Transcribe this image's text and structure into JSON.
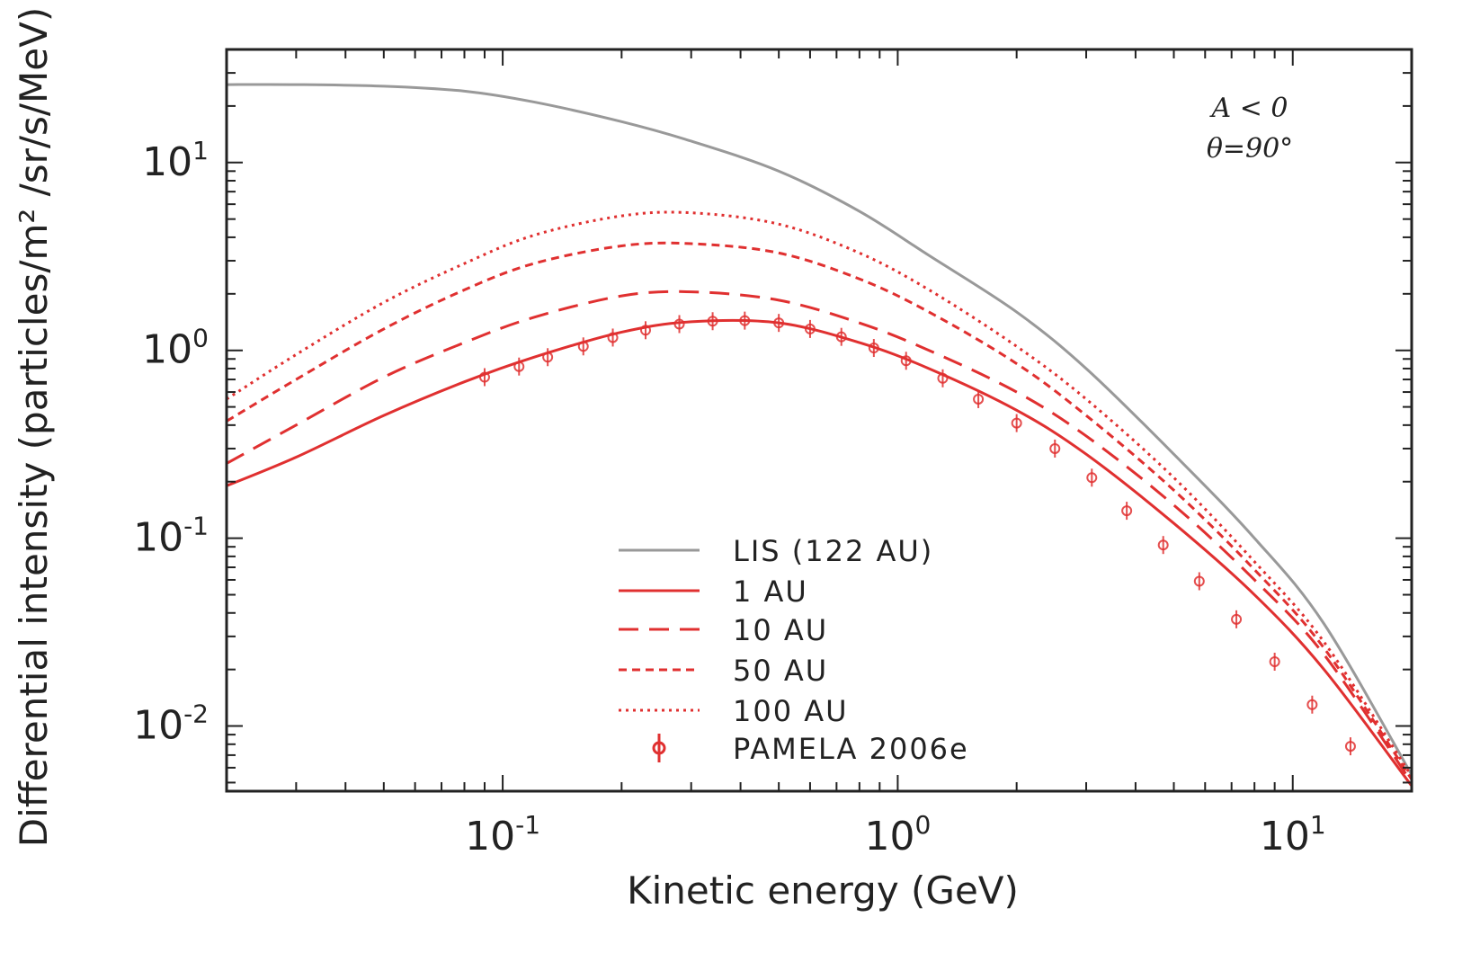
{
  "chart_data": {
    "type": "line",
    "xlabel": "Kinetic energy (GeV)",
    "ylabel": "Differential intensity (particles/m² /sr/s/MeV)",
    "xscale": "log",
    "yscale": "log",
    "xlim": [
      0.02,
      20
    ],
    "ylim": [
      0.0045,
      40
    ],
    "xticks": [
      {
        "base": "10",
        "exp": "-1",
        "value": 0.1
      },
      {
        "base": "10",
        "exp": "0",
        "value": 1
      },
      {
        "base": "10",
        "exp": "1",
        "value": 10
      }
    ],
    "yticks": [
      {
        "base": "10",
        "exp": "1",
        "value": 10
      },
      {
        "base": "10",
        "exp": "0",
        "value": 1
      },
      {
        "base": "10",
        "exp": "-1",
        "value": 0.1
      },
      {
        "base": "10",
        "exp": "-2",
        "value": 0.01
      }
    ],
    "annotations": [
      "A < 0",
      "θ=90°"
    ],
    "legend_position": "lower-center",
    "series": [
      {
        "name": "LIS (122 AU)",
        "color": "#999999",
        "style": "solid",
        "x": [
          0.02,
          0.03,
          0.05,
          0.08,
          0.12,
          0.2,
          0.3,
          0.5,
          0.8,
          1.2,
          2,
          3,
          5,
          8,
          12,
          20
        ],
        "y": [
          26,
          26,
          25.5,
          24,
          21,
          16.5,
          13,
          9,
          5.5,
          3.2,
          1.6,
          0.8,
          0.28,
          0.1,
          0.035,
          0.0055
        ]
      },
      {
        "name": "1 AU",
        "color": "#e03030",
        "style": "solid",
        "x": [
          0.02,
          0.03,
          0.05,
          0.08,
          0.12,
          0.2,
          0.3,
          0.5,
          0.8,
          1.2,
          2,
          3,
          5,
          8,
          12,
          20
        ],
        "y": [
          0.19,
          0.27,
          0.45,
          0.68,
          0.92,
          1.25,
          1.42,
          1.4,
          1.1,
          0.8,
          0.48,
          0.28,
          0.12,
          0.05,
          0.02,
          0.0048
        ]
      },
      {
        "name": "10 AU",
        "color": "#e03030",
        "style": "dashed",
        "x": [
          0.02,
          0.03,
          0.05,
          0.08,
          0.12,
          0.2,
          0.3,
          0.5,
          0.8,
          1.2,
          2,
          3,
          5,
          8,
          12,
          20
        ],
        "y": [
          0.25,
          0.4,
          0.72,
          1.1,
          1.5,
          1.95,
          2.05,
          1.85,
          1.4,
          1.0,
          0.6,
          0.35,
          0.15,
          0.06,
          0.024,
          0.005
        ]
      },
      {
        "name": "50 AU",
        "color": "#e03030",
        "style": "short-dashed",
        "x": [
          0.02,
          0.03,
          0.05,
          0.08,
          0.12,
          0.2,
          0.3,
          0.5,
          0.8,
          1.2,
          2,
          3,
          5,
          8,
          12,
          20
        ],
        "y": [
          0.42,
          0.7,
          1.3,
          2.1,
          2.9,
          3.6,
          3.7,
          3.3,
          2.4,
          1.6,
          0.85,
          0.45,
          0.18,
          0.068,
          0.026,
          0.0052
        ]
      },
      {
        "name": "100 AU",
        "color": "#e03030",
        "style": "dotted",
        "x": [
          0.02,
          0.03,
          0.05,
          0.08,
          0.12,
          0.2,
          0.3,
          0.5,
          0.8,
          1.2,
          2,
          3,
          5,
          8,
          12,
          20
        ],
        "y": [
          0.55,
          0.95,
          1.8,
          2.9,
          4.1,
          5.2,
          5.4,
          4.7,
          3.3,
          2.1,
          1.05,
          0.55,
          0.21,
          0.075,
          0.028,
          0.0054
        ]
      },
      {
        "name": "PAMELA 2006e",
        "color": "#e03030",
        "style": "markers",
        "x": [
          0.09,
          0.11,
          0.13,
          0.16,
          0.19,
          0.23,
          0.28,
          0.34,
          0.41,
          0.5,
          0.6,
          0.72,
          0.87,
          1.05,
          1.3,
          1.6,
          2.0,
          2.5,
          3.1,
          3.8,
          4.7,
          5.8,
          7.2,
          9.0,
          11.2,
          14.0
        ],
        "y": [
          0.72,
          0.82,
          0.92,
          1.05,
          1.17,
          1.28,
          1.38,
          1.43,
          1.44,
          1.4,
          1.3,
          1.18,
          1.03,
          0.88,
          0.71,
          0.55,
          0.41,
          0.3,
          0.21,
          0.14,
          0.092,
          0.059,
          0.037,
          0.022,
          0.013,
          0.0078
        ]
      }
    ]
  }
}
